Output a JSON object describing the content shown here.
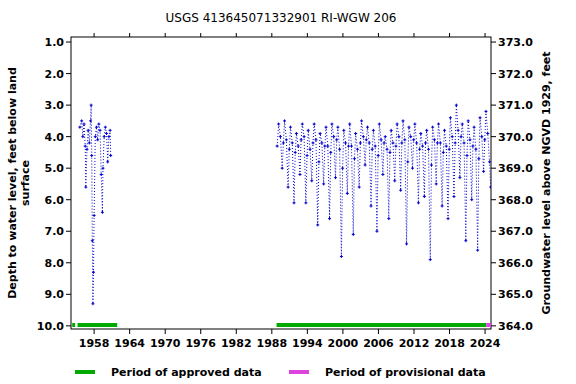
{
  "chart_data": {
    "type": "line",
    "title": "USGS 413645071332901 RI-WGW  206",
    "ylabel": [
      "Depth to water level, feet below land",
      "surface"
    ],
    "y2label": "Groundwater level above NGVD 1929, feet",
    "xlim": [
      1954.1,
      2025.0
    ],
    "xticks": [
      1958,
      1964,
      1970,
      1976,
      1982,
      1988,
      1994,
      2000,
      2006,
      2012,
      2018,
      2024
    ],
    "ylim": [
      0.84,
      10.1
    ],
    "yticks": [
      {
        "value": 1,
        "label": "1.0"
      },
      {
        "value": 2,
        "label": "2.0"
      },
      {
        "value": 3,
        "label": "3.0"
      },
      {
        "value": 4,
        "label": "4.0"
      },
      {
        "value": 5,
        "label": "5.0"
      },
      {
        "value": 6,
        "label": "6.0"
      },
      {
        "value": 7,
        "label": "7.0"
      },
      {
        "value": 8,
        "label": "8.0"
      },
      {
        "value": 9,
        "label": "9.0"
      },
      {
        "value": 10,
        "label": "10.0"
      }
    ],
    "y2lim": [
      373.16,
      363.9
    ],
    "y2ticks": [
      {
        "value": 373,
        "label": "373.0"
      },
      {
        "value": 372,
        "label": "372.0"
      },
      {
        "value": 371,
        "label": "371.0"
      },
      {
        "value": 370,
        "label": "370.0"
      },
      {
        "value": 369,
        "label": "369.0"
      },
      {
        "value": 368,
        "label": "368.0"
      },
      {
        "value": 367,
        "label": "367.0"
      },
      {
        "value": 366,
        "label": "366.0"
      },
      {
        "value": 365,
        "label": "365.0"
      },
      {
        "value": 364,
        "label": "364.0"
      }
    ],
    "grid": false,
    "series": [
      {
        "name": "Depth to water level",
        "color": "#0000cc",
        "marker": "plus",
        "line_style": "dotted",
        "x": [
          1955.6,
          1955.9,
          1956.1,
          1956.3,
          1956.5,
          1956.6,
          1956.8,
          1957.0,
          1957.2,
          1957.4,
          1957.5,
          1957.6,
          1957.7,
          1957.8,
          1957.9,
          1958.0,
          1958.2,
          1958.4,
          1958.6,
          1958.8,
          1959.0,
          1959.2,
          1959.4,
          1959.5,
          1959.7,
          1959.9,
          1960.1,
          1960.3,
          1960.5,
          1960.7,
          1960.8,
          1975.0,
          1988.9,
          1989.15,
          1989.45,
          1989.75,
          1989.95,
          1990.15,
          1990.45,
          1990.75,
          1990.95,
          1991.15,
          1991.45,
          1991.75,
          1991.95,
          1992.15,
          1992.45,
          1992.75,
          1992.95,
          1993.15,
          1993.45,
          1993.75,
          1993.95,
          1994.15,
          1994.45,
          1994.75,
          1994.95,
          1995.15,
          1995.45,
          1995.75,
          1995.95,
          1996.15,
          1996.45,
          1996.75,
          1996.95,
          1997.15,
          1997.45,
          1997.75,
          1997.95,
          1998.15,
          1998.45,
          1998.75,
          1998.95,
          1999.15,
          1999.45,
          1999.75,
          1999.95,
          2000.15,
          2000.45,
          2000.75,
          2000.95,
          2001.15,
          2001.45,
          2001.75,
          2001.95,
          2002.15,
          2002.45,
          2002.75,
          2002.95,
          2003.15,
          2003.45,
          2003.75,
          2003.95,
          2004.15,
          2004.45,
          2004.75,
          2004.95,
          2005.15,
          2005.45,
          2005.75,
          2005.95,
          2006.15,
          2006.45,
          2006.75,
          2006.95,
          2007.15,
          2007.45,
          2007.75,
          2007.95,
          2008.15,
          2008.45,
          2008.75,
          2008.95,
          2009.15,
          2009.45,
          2009.75,
          2009.95,
          2010.15,
          2010.45,
          2010.75,
          2010.95,
          2011.15,
          2011.45,
          2011.75,
          2011.95,
          2012.15,
          2012.45,
          2012.75,
          2012.95,
          2013.15,
          2013.45,
          2013.75,
          2013.95,
          2014.15,
          2014.45,
          2014.75,
          2014.95,
          2015.15,
          2015.45,
          2015.75,
          2015.95,
          2016.15,
          2016.45,
          2016.75,
          2016.95,
          2017.15,
          2017.45,
          2017.75,
          2017.95,
          2018.15,
          2018.45,
          2018.75,
          2018.95,
          2019.15,
          2019.45,
          2019.75,
          2019.95,
          2020.15,
          2020.45,
          2020.75,
          2020.95,
          2021.15,
          2021.45,
          2021.75,
          2021.95,
          2022.15,
          2022.45,
          2022.75,
          2022.95,
          2023.15,
          2023.45,
          2023.75,
          2023.95,
          2024.15,
          2024.45,
          2024.75,
          2024.95
        ],
        "values": [
          3.7,
          3.5,
          4.0,
          3.6,
          4.3,
          5.6,
          4.4,
          3.8,
          4.2,
          3.5,
          3.0,
          4.6,
          7.3,
          9.3,
          8.3,
          6.5,
          4.0,
          3.7,
          4.1,
          3.6,
          3.8,
          5.2,
          6.4,
          5.0,
          4.0,
          3.7,
          3.9,
          4.8,
          4.0,
          3.8,
          4.6,
          null,
          4.3,
          3.6,
          4.0,
          5.0,
          4.2,
          3.5,
          4.1,
          5.6,
          4.4,
          3.7,
          4.2,
          6.1,
          4.5,
          3.9,
          4.3,
          5.2,
          4.1,
          3.6,
          4.0,
          6.1,
          4.6,
          3.8,
          4.4,
          5.4,
          4.2,
          3.6,
          4.1,
          6.8,
          4.8,
          3.9,
          4.2,
          5.5,
          4.3,
          3.7,
          4.3,
          6.6,
          4.5,
          3.6,
          4.0,
          5.3,
          4.1,
          3.7,
          4.4,
          7.8,
          5.0,
          3.8,
          4.2,
          5.8,
          4.3,
          3.6,
          4.3,
          7.1,
          4.7,
          3.9,
          4.4,
          5.6,
          4.2,
          3.5,
          4.0,
          4.9,
          4.1,
          3.7,
          4.2,
          6.2,
          4.4,
          3.8,
          4.3,
          7.0,
          4.6,
          3.6,
          4.1,
          5.2,
          4.2,
          4.0,
          4.4,
          6.6,
          4.5,
          3.8,
          4.2,
          5.4,
          4.3,
          3.6,
          4.0,
          5.7,
          4.2,
          3.5,
          4.1,
          7.4,
          4.8,
          3.7,
          4.0,
          5.0,
          4.1,
          3.6,
          4.2,
          6.1,
          4.4,
          3.9,
          4.3,
          5.9,
          4.2,
          3.8,
          4.4,
          7.9,
          4.9,
          3.7,
          4.1,
          5.5,
          4.2,
          3.6,
          4.2,
          6.2,
          4.5,
          3.8,
          4.3,
          6.6,
          4.4,
          3.4,
          4.0,
          5.9,
          4.2,
          3.0,
          3.8,
          5.3,
          4.0,
          3.6,
          4.2,
          7.3,
          4.6,
          3.5,
          4.1,
          6.0,
          4.3,
          3.7,
          4.4,
          7.6,
          4.7,
          3.4,
          4.0,
          5.1,
          4.1,
          3.2,
          3.9,
          4.8,
          5.6
        ]
      }
    ],
    "periods": [
      {
        "name": "Period of approved data",
        "color": "#00aa00",
        "ranges": [
          [
            1954.3,
            1954.8
          ],
          [
            1955.2,
            1961.9
          ],
          [
            1988.8,
            2024.2
          ]
        ]
      },
      {
        "name": "Period of provisional data",
        "color": "#dd44dd",
        "ranges": [
          [
            2024.2,
            2025.0
          ]
        ]
      }
    ]
  }
}
